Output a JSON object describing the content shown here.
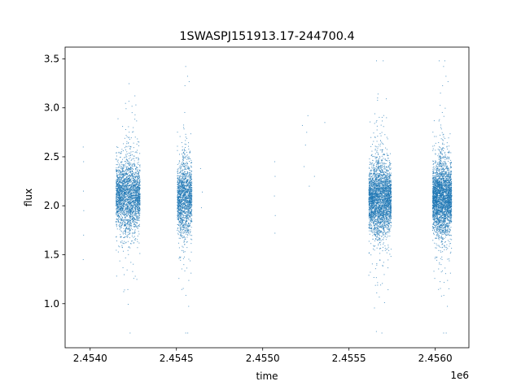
{
  "chart_data": {
    "type": "scatter",
    "title": "1SWASPJ151913.17-244700.4",
    "xlabel": "time",
    "ylabel": "flux",
    "x_offset_label": "1e6",
    "xlim": [
      2453855,
      2456195
    ],
    "ylim": [
      0.55,
      3.62
    ],
    "x_ticks": [
      {
        "value": 2454000,
        "label": "2.4540"
      },
      {
        "value": 2454500,
        "label": "2.4545"
      },
      {
        "value": 2455000,
        "label": "2.4550"
      },
      {
        "value": 2455500,
        "label": "2.4555"
      },
      {
        "value": 2456000,
        "label": "2.4560"
      }
    ],
    "y_ticks": [
      {
        "value": 1.0,
        "label": "1.0"
      },
      {
        "value": 1.5,
        "label": "1.5"
      },
      {
        "value": 2.0,
        "label": "2.0"
      },
      {
        "value": 2.5,
        "label": "2.5"
      },
      {
        "value": 3.0,
        "label": "3.0"
      },
      {
        "value": 3.5,
        "label": "3.5"
      }
    ],
    "grid": false,
    "marker_color": "#1f77b4",
    "series": [
      {
        "seasons": [
          {
            "x_range": [
              2454150,
              2454290
            ],
            "count": 2600,
            "center": 2.1,
            "spread": 0.22
          },
          {
            "x_range": [
              2454505,
              2454590
            ],
            "count": 1700,
            "center": 2.08,
            "spread": 0.22
          },
          {
            "x_range": [
              2455615,
              2455745
            ],
            "count": 3200,
            "center": 2.07,
            "spread": 0.22
          },
          {
            "x_range": [
              2455985,
              2456095
            ],
            "count": 3200,
            "center": 2.08,
            "spread": 0.22
          }
        ],
        "sparse_points": [
          [
            2453960,
            2.6
          ],
          [
            2453962,
            2.45
          ],
          [
            2453961,
            2.15
          ],
          [
            2453963,
            1.95
          ],
          [
            2453962,
            1.7
          ],
          [
            2453960,
            1.45
          ],
          [
            2454640,
            2.38
          ],
          [
            2454650,
            2.14
          ],
          [
            2454645,
            1.98
          ],
          [
            2455070,
            2.45
          ],
          [
            2455072,
            2.3
          ],
          [
            2455068,
            2.1
          ],
          [
            2455073,
            1.9
          ],
          [
            2455071,
            1.72
          ],
          [
            2455230,
            2.82
          ],
          [
            2455240,
            2.4
          ],
          [
            2455248,
            2.62
          ],
          [
            2455255,
            2.75
          ],
          [
            2455262,
            2.92
          ],
          [
            2455270,
            2.2
          ],
          [
            2455300,
            2.3
          ],
          [
            2455360,
            2.85
          ]
        ]
      }
    ]
  }
}
